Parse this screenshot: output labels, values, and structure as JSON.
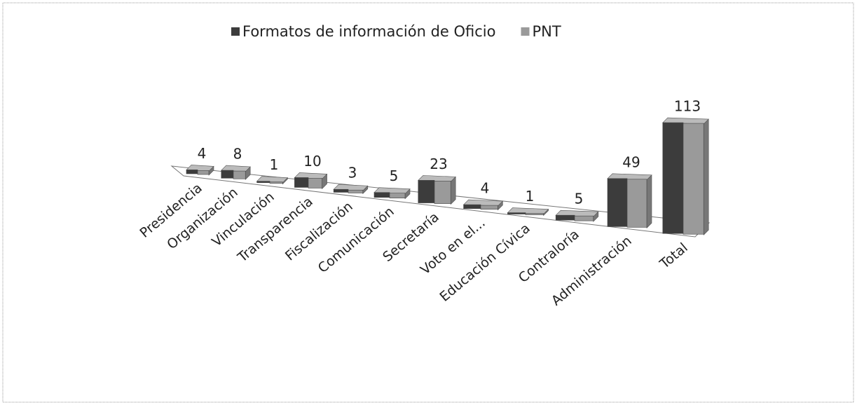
{
  "chart_data": {
    "type": "bar3d",
    "categories": [
      "Presidencia",
      "Organización",
      "Vinculación",
      "Transparencia",
      "Fiscalización",
      "Comunicación",
      "Secretaría",
      "Voto en el...",
      "Educación Cívica",
      "Contraloría",
      "Administración",
      "Total"
    ],
    "series": [
      {
        "name": "Formatos de información de Oficio",
        "color": "#3c3c3c",
        "values": [
          4,
          8,
          1,
          10,
          3,
          5,
          23,
          4,
          1,
          5,
          49,
          113
        ]
      },
      {
        "name": "PNT",
        "color": "#9a9a9a",
        "values": [
          4,
          8,
          1,
          10,
          3,
          5,
          23,
          4,
          1,
          5,
          49,
          113
        ]
      }
    ]
  }
}
